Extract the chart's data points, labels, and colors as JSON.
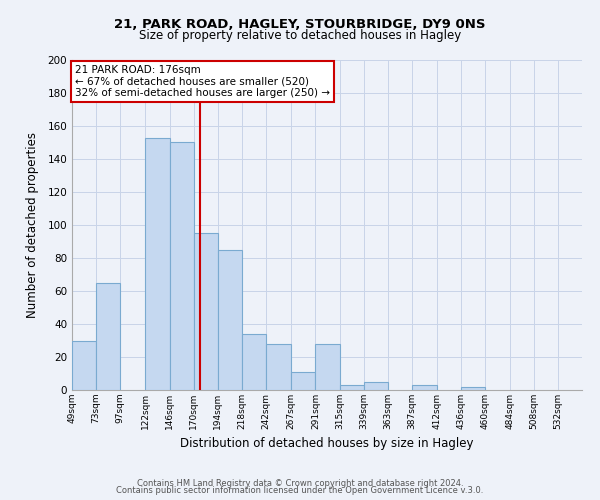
{
  "title1": "21, PARK ROAD, HAGLEY, STOURBRIDGE, DY9 0NS",
  "title2": "Size of property relative to detached houses in Hagley",
  "xlabel": "Distribution of detached houses by size in Hagley",
  "ylabel": "Number of detached properties",
  "bar_left_edges": [
    49,
    73,
    97,
    122,
    146,
    170,
    194,
    218,
    242,
    267,
    291,
    315,
    339,
    363,
    387,
    412,
    436,
    460,
    484,
    508
  ],
  "bar_widths": [
    24,
    24,
    25,
    24,
    24,
    24,
    24,
    24,
    25,
    24,
    24,
    24,
    24,
    24,
    25,
    24,
    24,
    24,
    24,
    24
  ],
  "bar_heights": [
    30,
    65,
    0,
    153,
    150,
    95,
    85,
    34,
    28,
    11,
    28,
    3,
    5,
    0,
    3,
    0,
    2,
    0,
    0,
    0
  ],
  "bar_color": "#c5d8f0",
  "bar_edge_color": "#7aaad0",
  "x_tick_labels": [
    "49sqm",
    "73sqm",
    "97sqm",
    "122sqm",
    "146sqm",
    "170sqm",
    "194sqm",
    "218sqm",
    "242sqm",
    "267sqm",
    "291sqm",
    "315sqm",
    "339sqm",
    "363sqm",
    "387sqm",
    "412sqm",
    "436sqm",
    "460sqm",
    "484sqm",
    "508sqm",
    "532sqm"
  ],
  "x_tick_positions": [
    49,
    73,
    97,
    122,
    146,
    170,
    194,
    218,
    242,
    267,
    291,
    315,
    339,
    363,
    387,
    412,
    436,
    460,
    484,
    508,
    532
  ],
  "ylim": [
    0,
    200
  ],
  "yticks": [
    0,
    20,
    40,
    60,
    80,
    100,
    120,
    140,
    160,
    180,
    200
  ],
  "marker_x": 176,
  "marker_color": "#cc0000",
  "annotation_title": "21 PARK ROAD: 176sqm",
  "annotation_line1": "← 67% of detached houses are smaller (520)",
  "annotation_line2": "32% of semi-detached houses are larger (250) →",
  "annotation_box_color": "#ffffff",
  "annotation_box_edge_color": "#cc0000",
  "footer1": "Contains HM Land Registry data © Crown copyright and database right 2024.",
  "footer2": "Contains public sector information licensed under the Open Government Licence v.3.0.",
  "bg_color": "#eef2f9",
  "grid_color": "#c8d4e8"
}
